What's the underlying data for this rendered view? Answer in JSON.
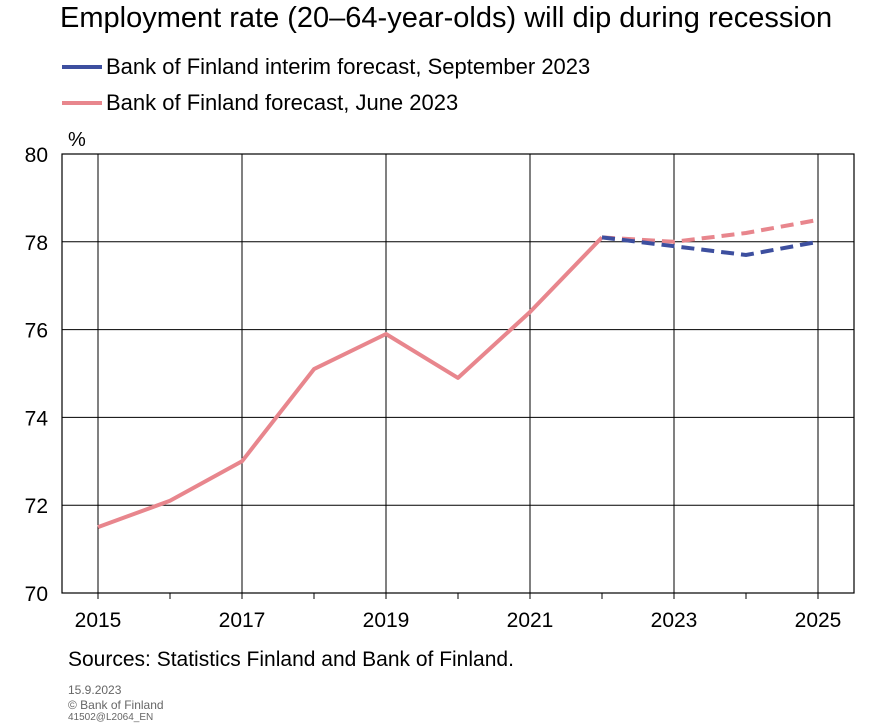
{
  "chart_data": {
    "type": "line",
    "title": "Employment rate (20–64-year-olds) will dip during recession",
    "unit_label": "%",
    "x": [
      2015,
      2016,
      2017,
      2018,
      2019,
      2020,
      2021,
      2022,
      2023,
      2024,
      2025
    ],
    "x_ticks": [
      "2015",
      "2017",
      "2019",
      "2021",
      "2023",
      "2025"
    ],
    "y_ticks": [
      "70",
      "72",
      "74",
      "76",
      "78",
      "80"
    ],
    "xlim": [
      2014.5,
      2025.5
    ],
    "ylim": [
      70,
      80
    ],
    "grid": true,
    "forecast_start": 2022,
    "series": [
      {
        "name": "Bank of Finland interim forecast, September 2023",
        "color": "#3d4f9f",
        "style": "dashed-forecast",
        "values": [
          null,
          null,
          null,
          null,
          null,
          null,
          null,
          78.1,
          77.9,
          77.7,
          78.0
        ]
      },
      {
        "name": "Bank of Finland forecast, June 2023",
        "color": "#e8868d",
        "style": "solid-then-dashed",
        "values": [
          71.5,
          72.1,
          73.0,
          75.1,
          75.9,
          74.9,
          76.4,
          78.1,
          78.0,
          78.2,
          78.5
        ]
      }
    ]
  },
  "footer": {
    "sources": "Sources: Statistics Finland and Bank of Finland.",
    "date": "15.9.2023",
    "copyright": "© Bank of Finland",
    "code": "41502@L2064_EN"
  }
}
